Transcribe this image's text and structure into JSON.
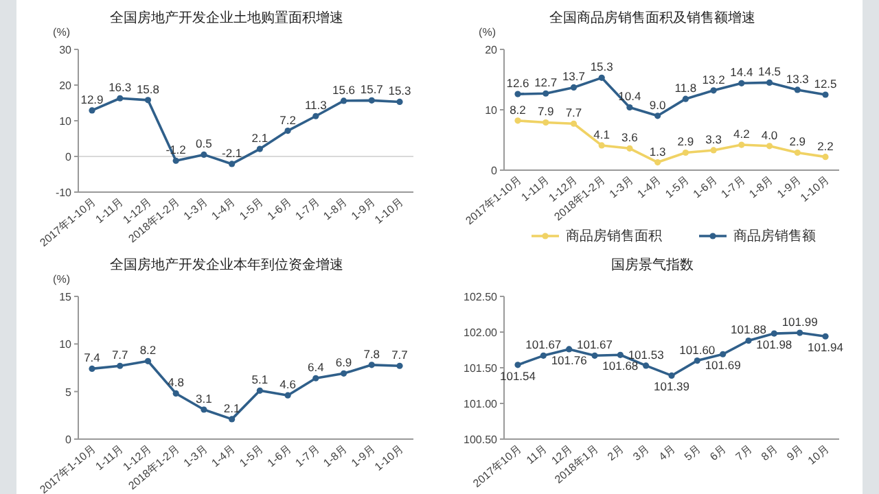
{
  "chart_data": [
    {
      "type": "line",
      "title": "全国房地产开发企业土地购置面积增速",
      "ylabel": "(%)",
      "categories": [
        "2017年1-10月",
        "1-11月",
        "1-12月",
        "2018年1-2月",
        "1-3月",
        "1-4月",
        "1-5月",
        "1-6月",
        "1-7月",
        "1-8月",
        "1-9月",
        "1-10月"
      ],
      "values": [
        12.9,
        16.3,
        15.8,
        -1.2,
        0.5,
        -2.1,
        2.1,
        7.2,
        11.3,
        15.6,
        15.7,
        15.3
      ],
      "color": "#2f5f8a",
      "ylim": [
        -10,
        30
      ],
      "yticks": [
        -10,
        0,
        10,
        20,
        30
      ],
      "ref_lines": [
        {
          "axis": "y",
          "value": 0,
          "color": "#d9d9d9"
        }
      ],
      "data_labels": true,
      "marker": "circle"
    },
    {
      "type": "line",
      "title": "全国商品房销售面积及销售额增速",
      "ylabel": "(%)",
      "categories": [
        "2017年1-10月",
        "1-11月",
        "1-12月",
        "2018年1-2月",
        "1-3月",
        "1-4月",
        "1-5月",
        "1-6月",
        "1-7月",
        "1-8月",
        "1-9月",
        "1-10月"
      ],
      "series": [
        {
          "name": "商品房销售面积",
          "color": "#f0d264",
          "values": [
            8.2,
            7.9,
            7.7,
            4.1,
            3.6,
            1.3,
            2.9,
            3.3,
            4.2,
            4.0,
            2.9,
            2.2
          ],
          "value_labels": [
            "8.2",
            "7.9",
            "7.7",
            "4.1",
            "3.6",
            "1.3",
            "2.9",
            "3.3",
            "4.2",
            "4.0",
            "2.9",
            "2.2"
          ]
        },
        {
          "name": "商品房销售额",
          "color": "#2f5f8a",
          "values": [
            12.6,
            12.7,
            13.7,
            15.3,
            10.4,
            9.0,
            11.8,
            13.2,
            14.4,
            14.5,
            13.3,
            12.5
          ],
          "value_labels": [
            "12.6",
            "12.7",
            "13.7",
            "15.3",
            "10.4",
            "9.0",
            "11.8",
            "13.2",
            "14.4",
            "14.5",
            "13.3",
            "12.5"
          ]
        }
      ],
      "ylim": [
        0,
        20
      ],
      "yticks": [
        0,
        10,
        20
      ],
      "marker": "circle",
      "legend": "bottom"
    },
    {
      "type": "line",
      "title": "全国房地产开发企业本年到位资金增速",
      "ylabel": "(%)",
      "categories": [
        "2017年1-10月",
        "1-11月",
        "1-12月",
        "2018年1-2月",
        "1-3月",
        "1-4月",
        "1-5月",
        "1-6月",
        "1-7月",
        "1-8月",
        "1-9月",
        "1-10月"
      ],
      "values": [
        7.4,
        7.7,
        8.2,
        4.8,
        3.1,
        2.1,
        5.1,
        4.6,
        6.4,
        6.9,
        7.8,
        7.7
      ],
      "color": "#2f5f8a",
      "ylim": [
        0,
        15
      ],
      "yticks": [
        0,
        5,
        10,
        15
      ],
      "data_labels": true,
      "marker": "circle"
    },
    {
      "type": "line",
      "title": "国房景气指数",
      "categories": [
        "2017年10月",
        "11月",
        "12月",
        "2018年1月",
        "2月",
        "3月",
        "4月",
        "5月",
        "6月",
        "7月",
        "8月",
        "9月",
        "10月"
      ],
      "values": [
        101.54,
        101.67,
        101.76,
        101.67,
        101.68,
        101.53,
        101.39,
        101.6,
        101.69,
        101.88,
        101.98,
        101.99,
        101.94
      ],
      "value_labels": [
        "101.54",
        "101.67",
        "101.76",
        "101.67",
        "101.68",
        "101.53",
        "101.39",
        "101.60",
        "101.69",
        "101.88",
        "101.98",
        "101.99",
        "101.94"
      ],
      "color": "#2f5f8a",
      "ylim": [
        100.5,
        102.5
      ],
      "yticks": [
        {
          "value": 100.5,
          "label": "100.50"
        },
        {
          "value": 101,
          "label": "101.00"
        },
        {
          "value": 101.5,
          "label": "101.50"
        },
        {
          "value": 102,
          "label": "102.00"
        },
        {
          "value": 102.5,
          "label": "102.50"
        }
      ],
      "marker": "circle"
    }
  ]
}
